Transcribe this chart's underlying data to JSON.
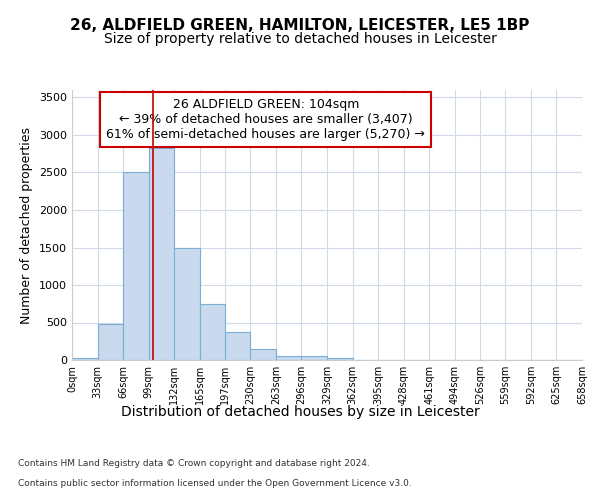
{
  "title": "26, ALDFIELD GREEN, HAMILTON, LEICESTER, LE5 1BP",
  "subtitle": "Size of property relative to detached houses in Leicester",
  "xlabel": "Distribution of detached houses by size in Leicester",
  "ylabel": "Number of detached properties",
  "footer_line1": "Contains HM Land Registry data © Crown copyright and database right 2024.",
  "footer_line2": "Contains public sector information licensed under the Open Government Licence v3.0.",
  "bin_edges": [
    0,
    33,
    66,
    99,
    132,
    165,
    197,
    230,
    263,
    296,
    329,
    362,
    395,
    428,
    461,
    494,
    526,
    559,
    592,
    625,
    658
  ],
  "bar_heights": [
    28,
    480,
    2500,
    2820,
    1500,
    750,
    380,
    150,
    60,
    60,
    30,
    5,
    5,
    3,
    0,
    0,
    0,
    0,
    0,
    0
  ],
  "bar_color": "#c9d9ee",
  "bar_edge_color": "#7bafd4",
  "vline_x": 104,
  "vline_color": "#cc0000",
  "annotation_title": "26 ALDFIELD GREEN: 104sqm",
  "annotation_line1": "← 39% of detached houses are smaller (3,407)",
  "annotation_line2": "61% of semi-detached houses are larger (5,270) →",
  "annotation_box_color": "#cc0000",
  "ylim": [
    0,
    3600
  ],
  "yticks": [
    0,
    500,
    1000,
    1500,
    2000,
    2500,
    3000,
    3500
  ],
  "background_color": "#ffffff",
  "plot_bg_color": "#ffffff",
  "grid_color": "#d0dae8",
  "title_fontsize": 11,
  "subtitle_fontsize": 10,
  "xlabel_fontsize": 10,
  "ylabel_fontsize": 9,
  "annotation_fontsize": 9
}
